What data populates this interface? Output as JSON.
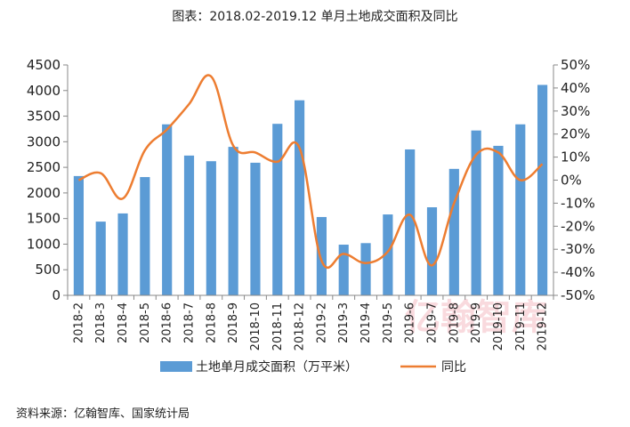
{
  "page_title": "图表：2018.02-2019.12 单月土地成交面积及同比",
  "source": "资料来源：亿翰智库、国家统计局",
  "watermark": "亿翰智库",
  "chart_data": {
    "type": "bar",
    "title": "图表：2018.02-2019.12 单月土地成交面积及同比",
    "categories": [
      "2018-2",
      "2018-3",
      "2018-4",
      "2018-5",
      "2018-6",
      "2018-7",
      "2018-8",
      "2018-9",
      "2018-10",
      "2018-11",
      "2018-12",
      "2019-2",
      "2019-3",
      "2019-4",
      "2019-5",
      "2019-6",
      "2019-7",
      "2019-8",
      "2019-9",
      "2019-10",
      "2019-11",
      "2019-12"
    ],
    "series": [
      {
        "name": "土地单月成交面积（万平米）",
        "type": "bar",
        "axis": "left",
        "color": "#5b9bd5",
        "values": [
          2330,
          1440,
          1600,
          2310,
          3340,
          2730,
          2620,
          2900,
          2590,
          3350,
          3810,
          1530,
          990,
          1020,
          1580,
          2850,
          1720,
          2470,
          3220,
          2920,
          3340,
          4110
        ]
      },
      {
        "name": "同比",
        "type": "line",
        "axis": "right",
        "color": "#ed7d31",
        "values": [
          0.0,
          0.03,
          -0.08,
          0.13,
          0.22,
          0.33,
          0.45,
          0.15,
          0.12,
          0.08,
          0.14,
          -0.35,
          -0.32,
          -0.36,
          -0.31,
          -0.15,
          -0.37,
          -0.1,
          0.11,
          0.12,
          0.0,
          0.07
        ]
      }
    ],
    "y_left": {
      "min": 0,
      "max": 4500,
      "step": 500,
      "ticks": [
        "0",
        "500",
        "1000",
        "1500",
        "2000",
        "2500",
        "3000",
        "3500",
        "4000",
        "4500"
      ]
    },
    "y_right": {
      "min": -0.5,
      "max": 0.5,
      "step": 0.1,
      "ticks": [
        "-50%",
        "-40%",
        "-30%",
        "-20%",
        "-10%",
        "0%",
        "10%",
        "20%",
        "30%",
        "40%",
        "50%"
      ]
    },
    "grid": false,
    "legend_position": "bottom"
  }
}
